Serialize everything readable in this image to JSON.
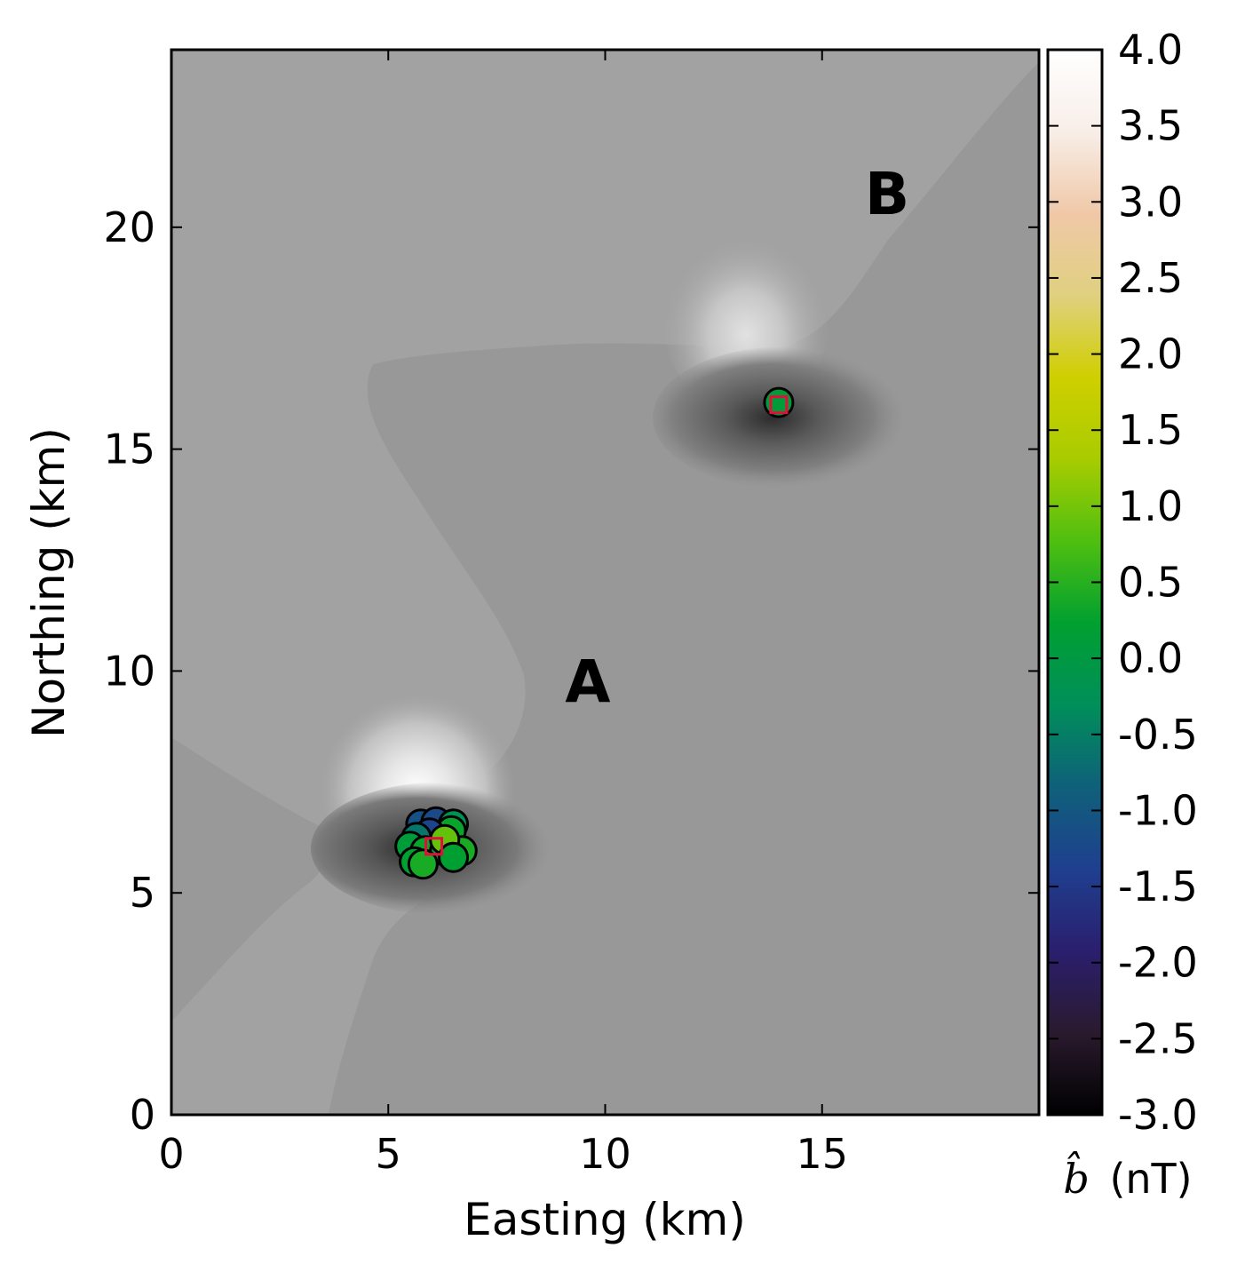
{
  "chart_data": {
    "type": "scatter",
    "background": "contour",
    "xlabel": "Easting (km)",
    "ylabel": "Northing (km)",
    "xlim": [
      0,
      20
    ],
    "ylim": [
      0,
      24
    ],
    "x_ticks": [
      "0",
      "5",
      "10",
      "15"
    ],
    "y_ticks": [
      "0",
      "5",
      "10",
      "15",
      "20"
    ],
    "x_tick_values": [
      0,
      5,
      10,
      15
    ],
    "y_tick_values": [
      0,
      5,
      10,
      15,
      20
    ],
    "annotations": [
      {
        "text": "A",
        "x": 9.6,
        "y": 9.3
      },
      {
        "text": "B",
        "x": 16.5,
        "y": 20.3
      }
    ],
    "colorbar": {
      "label_symbol": "b̂",
      "label_unit": "(nT)",
      "range": [
        -3.0,
        4.0
      ],
      "ticks": [
        "4.0",
        "3.5",
        "3.0",
        "2.5",
        "2.0",
        "1.5",
        "1.0",
        "0.5",
        "0.0",
        "-0.5",
        "-1.0",
        "-1.5",
        "-2.0",
        "-2.5",
        "-3.0"
      ],
      "tick_values": [
        4.0,
        3.5,
        3.0,
        2.5,
        2.0,
        1.5,
        1.0,
        0.5,
        0.0,
        -0.5,
        -1.0,
        -1.5,
        -2.0,
        -2.5,
        -3.0
      ],
      "colormap": [
        "#000000",
        "#2a1a2e",
        "#2a1f6e",
        "#1f3f8f",
        "#0f607a",
        "#008f5a",
        "#00a030",
        "#4fbf10",
        "#a8cc00",
        "#cfcf00",
        "#e0d080",
        "#f0c8a8",
        "#f8eee8",
        "#ffffff"
      ]
    },
    "sources": [
      {
        "x": 6.05,
        "y": 6.05
      },
      {
        "x": 14.0,
        "y": 16.0
      }
    ],
    "points": [
      {
        "x": 5.75,
        "y": 6.55,
        "value": -1.1
      },
      {
        "x": 6.1,
        "y": 6.6,
        "value": -1.2
      },
      {
        "x": 6.5,
        "y": 6.55,
        "value": -0.2
      },
      {
        "x": 6.45,
        "y": 6.4,
        "value": 0.3
      },
      {
        "x": 5.95,
        "y": 6.35,
        "value": -1.3
      },
      {
        "x": 5.65,
        "y": 6.25,
        "value": -0.6
      },
      {
        "x": 5.5,
        "y": 6.05,
        "value": 0.1
      },
      {
        "x": 5.85,
        "y": 5.95,
        "value": 0.3
      },
      {
        "x": 6.3,
        "y": 5.95,
        "value": 0.0
      },
      {
        "x": 6.7,
        "y": 5.95,
        "value": 0.4
      },
      {
        "x": 6.3,
        "y": 6.2,
        "value": 0.9
      },
      {
        "x": 5.6,
        "y": 5.7,
        "value": 0.2
      },
      {
        "x": 5.8,
        "y": 5.65,
        "value": 0.4
      },
      {
        "x": 6.5,
        "y": 5.8,
        "value": 0.2
      },
      {
        "x": 14.0,
        "y": 16.05,
        "value": 0.1
      }
    ]
  }
}
